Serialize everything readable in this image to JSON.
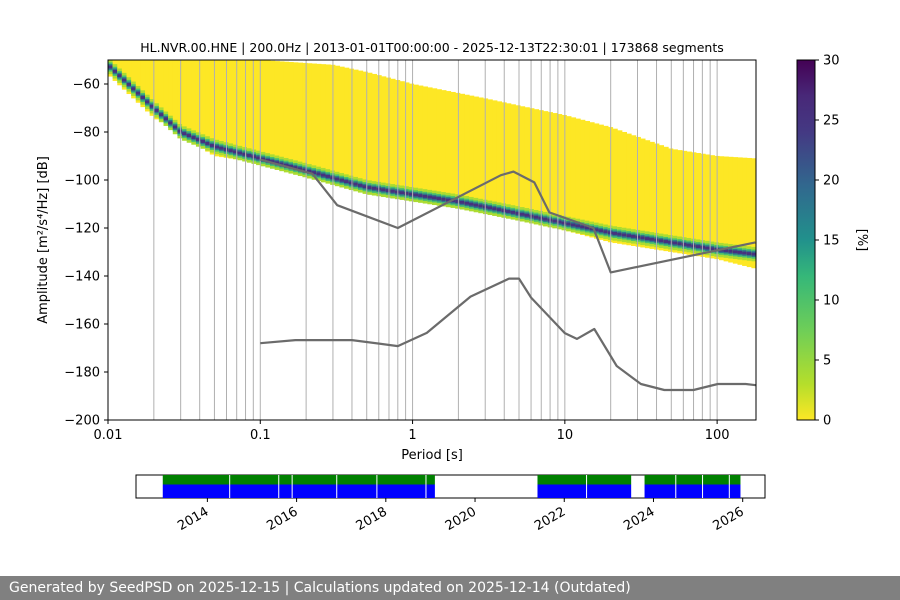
{
  "colors": {
    "nlnm_line": "#6b6b6b",
    "grid": "#b0b0b0",
    "availability_top": "#008000",
    "availability_bottom": "#0000ff",
    "footer_bg": "#808080",
    "footer_text": "#ffffff"
  },
  "footer": {
    "text": "Generated by SeedPSD on 2025-12-15 | Calculations updated on 2025-12-14 (Outdated)"
  },
  "chart_data": [
    {
      "type": "heatmap",
      "title": "HL.NVR.00.HNE | 200.0Hz | 2013-01-01T00:00:00 - 2025-12-13T22:30:01 | 173868 segments",
      "xlabel": "Period [s]",
      "ylabel": "Amplitude [m²/s⁴/Hz] [dB]",
      "xscale": "log",
      "xlim": [
        0.01,
        180
      ],
      "ylim": [
        -200,
        -50
      ],
      "x_ticks": [
        0.01,
        0.1,
        1,
        10,
        100
      ],
      "x_tick_labels": [
        "0.01",
        "0.1",
        "1",
        "10",
        "100"
      ],
      "y_ticks": [
        -200,
        -180,
        -160,
        -140,
        -120,
        -100,
        -80,
        -60
      ],
      "y_tick_labels": [
        "−200",
        "−180",
        "−160",
        "−140",
        "−120",
        "−100",
        "−80",
        "−60"
      ],
      "grid": true,
      "psd_density": {
        "description": "probabilistic PSD density band",
        "ridge": [
          [
            0.01,
            -52
          ],
          [
            0.02,
            -70
          ],
          [
            0.03,
            -80
          ],
          [
            0.05,
            -86
          ],
          [
            0.1,
            -91
          ],
          [
            0.2,
            -96
          ],
          [
            0.5,
            -103
          ],
          [
            1,
            -106
          ],
          [
            2,
            -109
          ],
          [
            5,
            -114
          ],
          [
            10,
            -118
          ],
          [
            20,
            -122
          ],
          [
            50,
            -126
          ],
          [
            100,
            -129
          ],
          [
            180,
            -131
          ]
        ],
        "upper_edge": [
          [
            0.01,
            -50
          ],
          [
            0.02,
            -50
          ],
          [
            0.05,
            -50
          ],
          [
            0.1,
            -50
          ],
          [
            0.3,
            -52
          ],
          [
            0.5,
            -55
          ],
          [
            1,
            -60
          ],
          [
            3,
            -66
          ],
          [
            5,
            -69
          ],
          [
            10,
            -73
          ],
          [
            20,
            -78
          ],
          [
            50,
            -87
          ],
          [
            100,
            -90
          ],
          [
            180,
            -91
          ]
        ],
        "lower_edge": [
          [
            0.01,
            -56
          ],
          [
            0.02,
            -74
          ],
          [
            0.05,
            -90
          ],
          [
            0.1,
            -93
          ],
          [
            0.2,
            -98
          ],
          [
            0.5,
            -104
          ],
          [
            1,
            -108
          ],
          [
            2,
            -111
          ],
          [
            5,
            -117
          ],
          [
            10,
            -121
          ],
          [
            20,
            -126
          ],
          [
            50,
            -130
          ],
          [
            100,
            -133
          ],
          [
            180,
            -137
          ]
        ]
      },
      "reference_curves": [
        {
          "name": "NHNM",
          "x": [
            0.1,
            0.22,
            0.32,
            0.8,
            3.8,
            4.6,
            6.3,
            7.9,
            15.4,
            20,
            178
          ],
          "y": [
            -91.5,
            -97.4,
            -110.5,
            -120,
            -98,
            -96.5,
            -101,
            -113.5,
            -120,
            -138.5,
            -126
          ]
        },
        {
          "name": "NLNM",
          "x": [
            0.1,
            0.17,
            0.4,
            0.8,
            1.24,
            2.4,
            4.3,
            5.0,
            6.0,
            10.0,
            12.0,
            15.6,
            21.9,
            31.6,
            45,
            70,
            101,
            154,
            180
          ],
          "y": [
            -168,
            -166.7,
            -166.7,
            -169.2,
            -163.7,
            -148.6,
            -141.1,
            -141.1,
            -149,
            -163.8,
            -166.2,
            -162.1,
            -177.5,
            -185,
            -187.5,
            -187.5,
            -185,
            -185,
            -185.5
          ]
        }
      ],
      "colorbar": {
        "label": "[%]",
        "range": [
          0,
          30
        ],
        "ticks": [
          0,
          5,
          10,
          15,
          20,
          25,
          30
        ],
        "tick_labels": [
          "0",
          "5",
          "10",
          "15",
          "20",
          "25",
          "30"
        ],
        "colormap": "viridis_r"
      }
    },
    {
      "type": "timeline",
      "xlim": [
        2012.4,
        2026.5
      ],
      "x_ticks": [
        2014,
        2016,
        2018,
        2020,
        2022,
        2024,
        2026
      ],
      "x_tick_labels": [
        "2014",
        "2016",
        "2018",
        "2020",
        "2022",
        "2024",
        "2026"
      ],
      "availability_segments": [
        [
          2013.0,
          2019.1
        ],
        [
          2021.4,
          2023.5
        ],
        [
          2023.8,
          2025.95
        ]
      ],
      "gaps": [
        2014.5,
        2015.6,
        2015.9,
        2016.9,
        2017.8,
        2018.9,
        2022.5,
        2024.5,
        2025.1,
        2025.7
      ]
    }
  ]
}
